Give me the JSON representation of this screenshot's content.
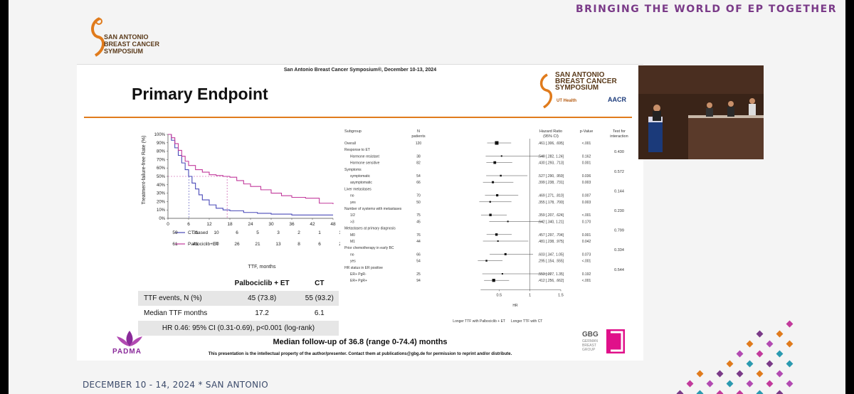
{
  "banner": {
    "text": "BRINGING THE WORLD OF EP TOGETHER"
  },
  "footer": {
    "date": "DECEMBER 10 - 14, 2024 * SAN ANTONIO"
  },
  "logo_sabcs": {
    "lines": [
      "SAN ANTONIO",
      "BREAST CANCER",
      "SYMPOSIUM"
    ]
  },
  "slide": {
    "header": "San Antonio Breast Cancer Symposium®, December 10-13, 2024",
    "title": "Primary Endpoint",
    "followup": "Median follow-up of 36.8 (range 0-74.4) months",
    "disclaimer": "This presentation is the intellectual property of the author/presenter. Contact them at publications@gbg.de for permission to reprint and/or distribute.",
    "padma_logo": "PADMA",
    "gbg_logo": {
      "name": "GBG",
      "sub": [
        "GERMAN",
        "BREAST",
        "GROUP"
      ]
    },
    "slide_logo": {
      "lines": [
        "SAN ANTONIO",
        "BREAST CANCER",
        "SYMPOSIUM"
      ],
      "ut": "UT Health",
      "aacr": "AACR"
    }
  },
  "km_plot": {
    "ylabel": "Treatment-failure-free Rate (%)",
    "xlabel": "TTF, months",
    "yticks": [
      "100%",
      "90%",
      "80%",
      "70%",
      "60%",
      "50%",
      "40%",
      "30%",
      "20%",
      "10%",
      "0%"
    ],
    "xticks": [
      "0",
      "6",
      "12",
      "18",
      "24",
      "30",
      "36",
      "42",
      "48"
    ],
    "series": [
      {
        "name": "CT based",
        "color": "#4a4ab8",
        "at_risk": [
          "59",
          "31",
          "10",
          "6",
          "5",
          "3",
          "2",
          "1",
          "1"
        ],
        "points": [
          [
            0,
            100
          ],
          [
            1,
            93
          ],
          [
            2,
            84
          ],
          [
            3,
            75
          ],
          [
            4,
            66
          ],
          [
            5,
            58
          ],
          [
            6,
            50
          ],
          [
            7,
            42
          ],
          [
            8,
            35
          ],
          [
            9,
            28
          ],
          [
            10,
            22
          ],
          [
            12,
            16
          ],
          [
            14,
            12
          ],
          [
            16,
            10
          ],
          [
            18,
            9
          ],
          [
            22,
            7
          ],
          [
            26,
            6
          ],
          [
            30,
            5
          ],
          [
            36,
            4
          ],
          [
            42,
            4
          ],
          [
            48,
            4
          ]
        ]
      },
      {
        "name": "Palbociclib+ET",
        "color": "#c23a9c",
        "at_risk": [
          "61",
          "41",
          "30",
          "26",
          "21",
          "13",
          "8",
          "6",
          "2"
        ],
        "points": [
          [
            0,
            100
          ],
          [
            1,
            96
          ],
          [
            2,
            89
          ],
          [
            3,
            81
          ],
          [
            4,
            74
          ],
          [
            5,
            68
          ],
          [
            6,
            63
          ],
          [
            8,
            58
          ],
          [
            10,
            55
          ],
          [
            12,
            52
          ],
          [
            14,
            51
          ],
          [
            16,
            50
          ],
          [
            18,
            49
          ],
          [
            20,
            45
          ],
          [
            22,
            41
          ],
          [
            24,
            38
          ],
          [
            27,
            34
          ],
          [
            30,
            30
          ],
          [
            33,
            27
          ],
          [
            36,
            25
          ],
          [
            40,
            24
          ],
          [
            44,
            18
          ],
          [
            48,
            17
          ]
        ]
      }
    ],
    "median_rate": 50,
    "median_ct": 6.1,
    "median_palbo": 17.2
  },
  "ttf_table": {
    "headers": [
      "",
      "Palbociclib + ET",
      "CT"
    ],
    "rows": [
      [
        "TTF events, N (%)",
        "45 (73.8)",
        "55 (93.2)"
      ],
      [
        "Median TTF months",
        "17.2",
        "6.1"
      ]
    ],
    "hr": "HR 0.46: 95% CI (0.31-0.69), p<0.001 (log-rank)"
  },
  "forest": {
    "headers": {
      "subgroup": "Subgroup",
      "n": [
        "N",
        "patients"
      ],
      "hr": [
        "Hazard Ratio",
        "(95% CI)"
      ],
      "p": "p-Value",
      "interaction": [
        "Test for",
        "interaction"
      ]
    },
    "rows": [
      {
        "label": "Overall",
        "n": "120",
        "hr": 0.461,
        "lo": 0.306,
        "hi": 0.695,
        "hr_text": ".461 [.306, .695]",
        "p": "<.001",
        "indent": 1
      },
      {
        "label": "Response to ET",
        "header": true,
        "interaction": "0.430"
      },
      {
        "label": "Hormone resistant",
        "n": "38",
        "hr": 0.54,
        "lo": 0.282,
        "hi": 1.24,
        "hr_text": ".540 [.282, 1.24]",
        "p": "0.162",
        "indent": 2
      },
      {
        "label": "Hormone sensitive",
        "n": "82",
        "hr": 0.43,
        "lo": 0.293,
        "hi": 0.713,
        "hr_text": ".430 [.293, .713]",
        "p": "0.001",
        "indent": 2
      },
      {
        "label": "Symptoms",
        "header": true,
        "interaction": "0.572"
      },
      {
        "label": "symptomatic",
        "n": "54",
        "hr": 0.527,
        "lo": 0.29,
        "hi": 0.959,
        "hr_text": ".527 [.290, .959]",
        "p": "0.036",
        "indent": 2
      },
      {
        "label": "asymptomatic",
        "n": "66",
        "hr": 0.399,
        "lo": 0.238,
        "hi": 0.731,
        "hr_text": ".399 [.238, .731]",
        "p": "0.003",
        "indent": 2
      },
      {
        "label": "Liver metastases",
        "header": true,
        "interaction": "0.144"
      },
      {
        "label": "no",
        "n": "70",
        "hr": 0.469,
        "lo": 0.271,
        "hi": 0.81,
        "hr_text": ".469 [.271, .810]",
        "p": "0.007",
        "indent": 2
      },
      {
        "label": "yes",
        "n": "50",
        "hr": 0.355,
        "lo": 0.178,
        "hi": 0.7,
        "hr_text": ".355 [.178, .700]",
        "p": "0.003",
        "indent": 2
      },
      {
        "label": "Number of systems with metastases",
        "header": true,
        "interaction": "0.230"
      },
      {
        "label": "1/2",
        "n": "75",
        "hr": 0.359,
        "lo": 0.207,
        "hi": 0.624,
        "hr_text": ".359 [.207, .624]",
        "p": "<.001",
        "indent": 2
      },
      {
        "label": ">3",
        "n": "45",
        "hr": 0.642,
        "lo": 0.34,
        "hi": 1.21,
        "hr_text": ".642 [.340, 1.21]",
        "p": "0.170",
        "indent": 2
      },
      {
        "label": "Metastases at primary diagnosis",
        "header": true,
        "interaction": "0.799"
      },
      {
        "label": "M0",
        "n": "76",
        "hr": 0.457,
        "lo": 0.297,
        "hi": 0.704,
        "hr_text": ".457 [.297, .704]",
        "p": "0.001",
        "indent": 2
      },
      {
        "label": "M1",
        "n": "44",
        "hr": 0.481,
        "lo": 0.238,
        "hi": 0.975,
        "hr_text": ".481 [.238, .975]",
        "p": "0.042",
        "indent": 2
      },
      {
        "label": "Prior chemotherapy in early BC",
        "header": true,
        "interaction": "0.334"
      },
      {
        "label": "no",
        "n": "66",
        "hr": 0.603,
        "lo": 0.347,
        "hi": 1.05,
        "hr_text": ".603 [.347, 1.05]",
        "p": "0.073",
        "indent": 2
      },
      {
        "label": "yes",
        "n": "54",
        "hr": 0.295,
        "lo": 0.154,
        "hi": 0.555,
        "hr_text": ".295 [.154, .555]",
        "p": "<.001",
        "indent": 2
      },
      {
        "label": "HR status in ER positive",
        "header": true,
        "interaction": "0.544"
      },
      {
        "label": "ER+ PgR-",
        "n": "25",
        "hr": 0.553,
        "lo": 0.227,
        "hi": 1.35,
        "hr_text": ".553 [.227, 1.35]",
        "p": "0.192",
        "indent": 2
      },
      {
        "label": "ER+ PgR+",
        "n": "94",
        "hr": 0.412,
        "lo": 0.256,
        "hi": 0.662,
        "hr_text": ".412 [.256, .662]",
        "p": "<.001",
        "indent": 2
      }
    ],
    "axis_ticks": [
      "0.5",
      "1",
      "1.5"
    ],
    "axis_label": "HR",
    "left_label": "Longer TTF with Palbociclib + ET",
    "right_label": "Longer TTF with CT"
  },
  "colors": {
    "accent_orange": "#e07b1c",
    "banner_purple": "#7a3a88",
    "ct_blue": "#4a4ab8",
    "palbo_magenta": "#c23a9c"
  }
}
